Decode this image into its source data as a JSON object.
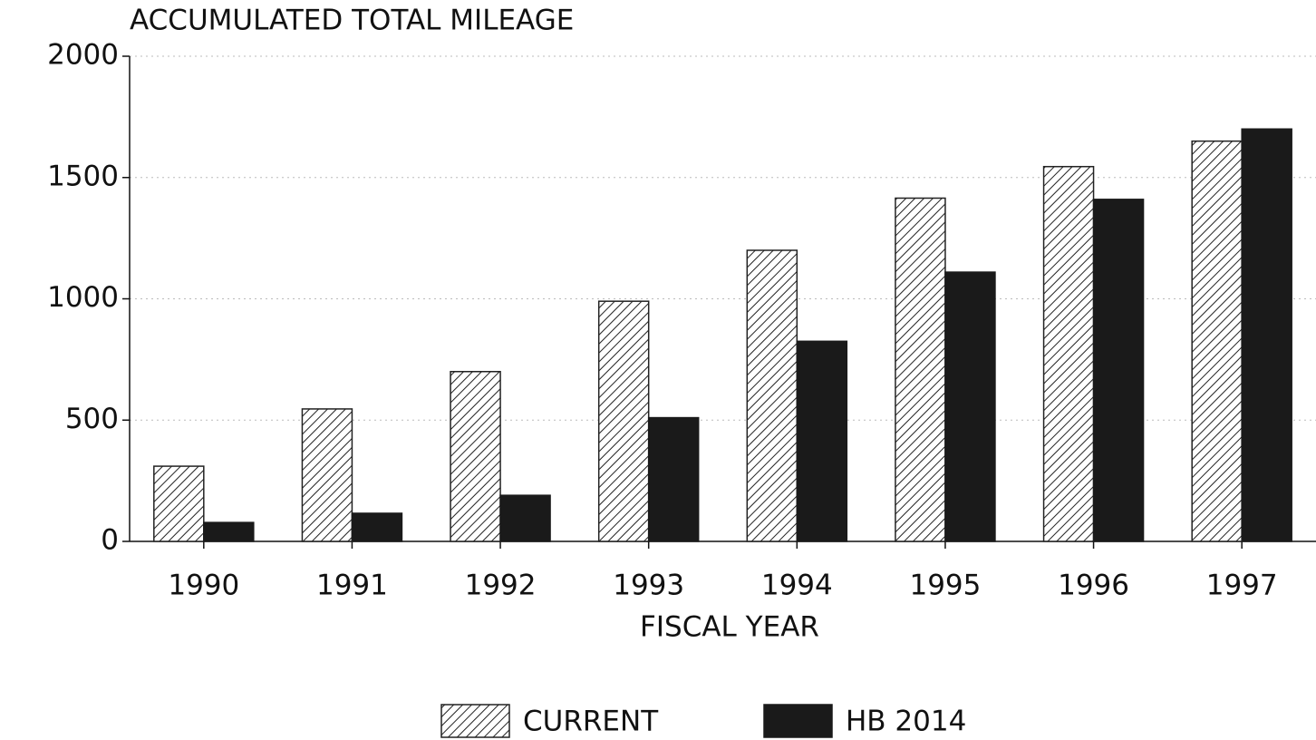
{
  "chart_data": {
    "type": "bar",
    "title": "ACCUMULATED TOTAL MILEAGE",
    "x_label": "FISCAL YEAR",
    "categories": [
      "1990",
      "1991",
      "1992",
      "1993",
      "1994",
      "1995",
      "1996",
      "1997"
    ],
    "series": [
      {
        "name": "CURRENT",
        "color": "#222222",
        "hatch": true,
        "values": [
          310,
          546,
          700,
          990,
          1200,
          1415,
          1545,
          1650
        ]
      },
      {
        "name": "HB 2014",
        "color": "#1a1a1a",
        "hatch": false,
        "values": [
          78,
          116,
          190,
          510,
          825,
          1110,
          1410,
          1700
        ]
      }
    ],
    "ylim": [
      0,
      2000
    ],
    "yticks": [
      0,
      500,
      1000,
      1500,
      2000
    ],
    "grid": true,
    "legend": "bottom"
  }
}
